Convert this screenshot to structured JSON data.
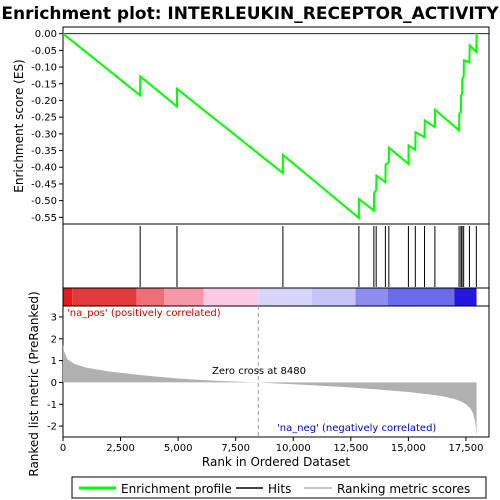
{
  "chart_data": [
    {
      "type": "line",
      "title": "Enrichment plot: INTERLEUKIN_RECEPTOR_ACTIVITY",
      "ylabel": "Enrichment score (ES)",
      "ylim": [
        -0.57,
        0.02
      ],
      "xlim": [
        0,
        18500
      ],
      "yticks": [
        0.0,
        -0.05,
        -0.1,
        -0.15,
        -0.2,
        -0.25,
        -0.3,
        -0.35,
        -0.4,
        -0.45,
        -0.5,
        -0.55
      ],
      "ytick_labels": [
        "0.00",
        "-0.05",
        "-0.10",
        "-0.15",
        "-0.20",
        "-0.25",
        "-0.30",
        "-0.35",
        "-0.40",
        "-0.45",
        "-0.50",
        "-0.55"
      ],
      "series": [
        {
          "name": "Enrichment profile",
          "color": "#00ff00",
          "x": [
            0,
            3350,
            3351,
            4950,
            4951,
            9550,
            9551,
            12850,
            12851,
            13500,
            13510,
            13600,
            13610,
            14000,
            14010,
            14150,
            14160,
            15000,
            15010,
            15300,
            15310,
            15700,
            15710,
            16150,
            16160,
            17200,
            17210,
            17280,
            17290,
            17330,
            17340,
            17400,
            17410,
            17650,
            17660,
            17950,
            17960
          ],
          "y": [
            0.0,
            -0.185,
            -0.128,
            -0.218,
            -0.165,
            -0.418,
            -0.363,
            -0.552,
            -0.495,
            -0.53,
            -0.478,
            -0.468,
            -0.425,
            -0.445,
            -0.392,
            -0.385,
            -0.342,
            -0.39,
            -0.335,
            -0.348,
            -0.295,
            -0.31,
            -0.26,
            -0.28,
            -0.228,
            -0.29,
            -0.24,
            -0.235,
            -0.185,
            -0.18,
            -0.135,
            -0.128,
            -0.08,
            -0.085,
            -0.035,
            -0.055,
            0.0
          ]
        }
      ]
    },
    {
      "type": "hits",
      "name": "Hits",
      "positions": [
        3350,
        4950,
        9550,
        12850,
        13500,
        13600,
        14000,
        14150,
        15000,
        15300,
        15700,
        16150,
        17200,
        17280,
        17330,
        17400,
        17650,
        17950
      ]
    },
    {
      "type": "area",
      "ylabel": "Ranked list metric (PreRanked)",
      "xlabel": "Rank in Ordered Dataset",
      "ylim": [
        -2.5,
        3.5
      ],
      "yticks": [
        3,
        2,
        1,
        0,
        -1,
        -2
      ],
      "ytick_labels": [
        "3",
        "2",
        "1",
        "0",
        "-1",
        "-2"
      ],
      "xticks": [
        0,
        2500,
        5000,
        7500,
        10000,
        12500,
        15000,
        17500
      ],
      "xtick_labels": [
        "0",
        "2,500",
        "5,000",
        "7,500",
        "10,000",
        "12,500",
        "15,000",
        "17,500"
      ],
      "series": [
        {
          "name": "Ranking metric scores",
          "color": "#b0b0b0",
          "x": [
            0,
            50,
            200,
            500,
            1000,
            2000,
            3000,
            4000,
            5000,
            6000,
            7000,
            8000,
            8480,
            9000,
            10000,
            11000,
            12000,
            13000,
            14000,
            15000,
            16000,
            16500,
            17000,
            17300,
            17500,
            17700,
            17800,
            17900,
            17960
          ],
          "y": [
            1.75,
            1.4,
            1.05,
            0.85,
            0.68,
            0.5,
            0.38,
            0.27,
            0.18,
            0.11,
            0.06,
            0.02,
            0.0,
            -0.03,
            -0.08,
            -0.14,
            -0.2,
            -0.27,
            -0.35,
            -0.44,
            -0.56,
            -0.64,
            -0.76,
            -0.88,
            -1.0,
            -1.2,
            -1.4,
            -1.8,
            -2.45
          ]
        }
      ],
      "annotations": {
        "pos": "'na_pos' (positively correlated)",
        "neg": "'na_neg' (negatively correlated)",
        "zero": "Zero cross at 8480"
      },
      "zero_cross": 8480
    }
  ],
  "legend": {
    "items": [
      {
        "label": "Enrichment profile",
        "color": "#00ff00"
      },
      {
        "label": "Hits",
        "color": "#000000"
      },
      {
        "label": "Ranking metric scores",
        "color": "#b0b0b0"
      }
    ]
  }
}
